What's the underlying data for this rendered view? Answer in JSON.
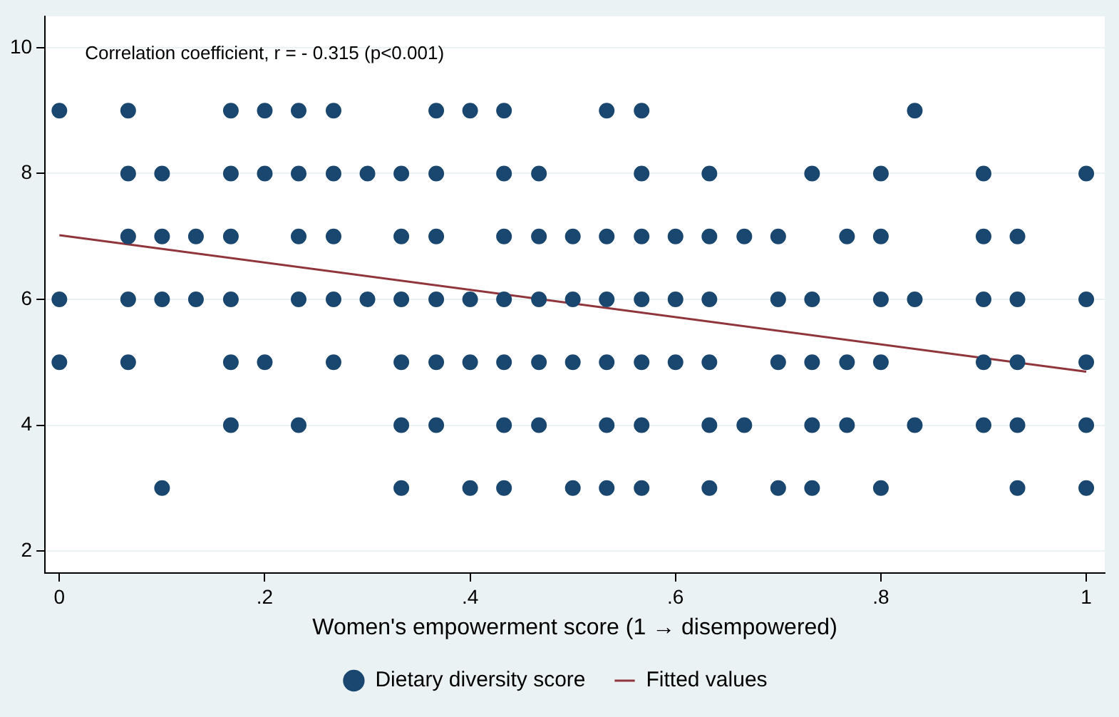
{
  "chart_data": {
    "type": "scatter",
    "xlabel": "Women's empowerment score (1 → disempowered)",
    "annotations": [
      "Correlation coefficient, r = - 0.315 (p<0.001)"
    ],
    "xlim": [
      -0.014,
      1.018
    ],
    "ylim": [
      1.65,
      10.5
    ],
    "xticks": [
      0,
      {
        "value": 0.2,
        "label": ".2"
      },
      {
        "value": 0.4,
        "label": ".4"
      },
      {
        "value": 0.6,
        "label": ".6"
      },
      {
        "value": 0.8,
        "label": ".8"
      },
      1
    ],
    "yticks": [
      2,
      4,
      6,
      8,
      10
    ],
    "grid": "y",
    "legend": "bottom",
    "series": [
      {
        "name": "Dietary diversity score",
        "marker": "circle",
        "color": "#1a476f",
        "x": [
          0,
          0,
          0,
          0.067,
          0.067,
          0.067,
          0.067,
          0.067,
          0.1,
          0.1,
          0.1,
          0.1,
          0.133,
          0.133,
          0.167,
          0.167,
          0.167,
          0.167,
          0.167,
          0.167,
          0.2,
          0.2,
          0.2,
          0.233,
          0.233,
          0.233,
          0.233,
          0.233,
          0.267,
          0.267,
          0.267,
          0.267,
          0.267,
          0.3,
          0.3,
          0.333,
          0.333,
          0.333,
          0.333,
          0.333,
          0.333,
          0.367,
          0.367,
          0.367,
          0.367,
          0.367,
          0.367,
          0.4,
          0.4,
          0.4,
          0.4,
          0.433,
          0.433,
          0.433,
          0.433,
          0.433,
          0.433,
          0.433,
          0.467,
          0.467,
          0.467,
          0.467,
          0.467,
          0.5,
          0.5,
          0.5,
          0.5,
          0.533,
          0.533,
          0.533,
          0.533,
          0.533,
          0.533,
          0.567,
          0.567,
          0.567,
          0.567,
          0.567,
          0.567,
          0.567,
          0.6,
          0.6,
          0.6,
          0.633,
          0.633,
          0.633,
          0.633,
          0.633,
          0.633,
          0.667,
          0.667,
          0.7,
          0.7,
          0.7,
          0.7,
          0.733,
          0.733,
          0.733,
          0.733,
          0.733,
          0.767,
          0.767,
          0.767,
          0.8,
          0.8,
          0.8,
          0.8,
          0.8,
          0.833,
          0.833,
          0.833,
          0.9,
          0.9,
          0.9,
          0.9,
          0.9,
          0.933,
          0.933,
          0.933,
          0.933,
          0.933,
          1,
          1,
          1,
          1,
          1
        ],
        "values": [
          9,
          6,
          5,
          9,
          8,
          7,
          6,
          5,
          8,
          7,
          6,
          3,
          7,
          6,
          9,
          8,
          7,
          6,
          5,
          4,
          9,
          8,
          5,
          9,
          8,
          7,
          6,
          4,
          9,
          8,
          7,
          6,
          5,
          8,
          6,
          8,
          7,
          6,
          5,
          4,
          3,
          9,
          8,
          7,
          6,
          5,
          4,
          9,
          6,
          5,
          3,
          9,
          8,
          7,
          6,
          5,
          4,
          3,
          8,
          7,
          6,
          5,
          4,
          7,
          6,
          5,
          3,
          9,
          7,
          6,
          5,
          4,
          3,
          9,
          8,
          7,
          6,
          5,
          4,
          3,
          7,
          6,
          5,
          8,
          7,
          6,
          5,
          4,
          3,
          7,
          4,
          7,
          6,
          5,
          3,
          8,
          6,
          5,
          4,
          3,
          7,
          5,
          4,
          8,
          7,
          6,
          5,
          3,
          9,
          6,
          4,
          8,
          7,
          6,
          5,
          4,
          7,
          6,
          5,
          4,
          3,
          8,
          6,
          5,
          4,
          3
        ]
      },
      {
        "name": "Fitted values",
        "type": "line",
        "marker": "none",
        "color": "#90353b",
        "x": [
          0,
          1
        ],
        "values": [
          7.02,
          4.85
        ]
      }
    ]
  }
}
